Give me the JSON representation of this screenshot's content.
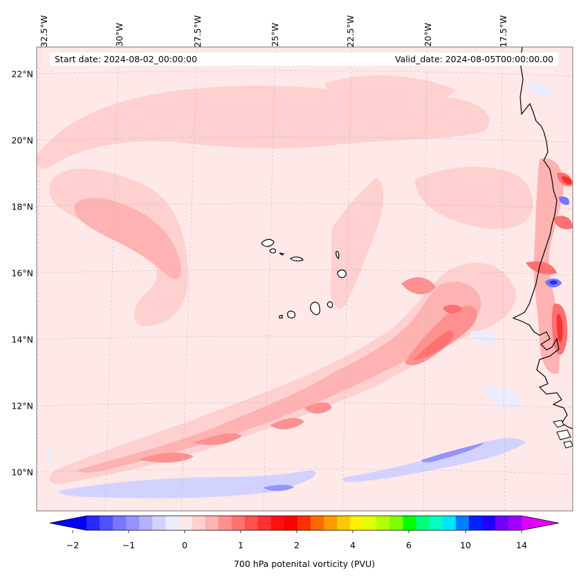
{
  "map": {
    "start_date": "Start date: 2024-08-02_00:00:00",
    "valid_date": "Valid_date: 2024-08-05T00:00:00.00",
    "lon_labels": [
      "32.5°W",
      "30°W",
      "27.5°W",
      "25°W",
      "22.5°W",
      "20°W",
      "17.5°W"
    ],
    "lat_labels": [
      "22°N",
      "20°N",
      "18°N",
      "16°N",
      "14°N",
      "12°N",
      "10°N"
    ],
    "extent": {
      "lon_min": -33.0,
      "lon_max": -15.8,
      "lat_min": 8.9,
      "lat_max": 22.8
    }
  },
  "colorbar": {
    "title": "700 hPa potenital vorticity (PVU)",
    "tick_labels": [
      "−2",
      "−1",
      "0",
      "1",
      "2",
      "4",
      "6",
      "10",
      "14"
    ],
    "colors": [
      "#0000ff",
      "#2a2aff",
      "#5050ff",
      "#7676ff",
      "#9494ff",
      "#b2b2ff",
      "#d2d2ff",
      "#ececff",
      "#ffe8e8",
      "#ffd0d0",
      "#ffb2b2",
      "#ff9090",
      "#ff7070",
      "#ff5050",
      "#ff3030",
      "#ff1010",
      "#ff0000",
      "#ff3000",
      "#ff6a00",
      "#ff9a00",
      "#ffc800",
      "#fff000",
      "#e0ff00",
      "#b4ff00",
      "#7cff00",
      "#00ff00",
      "#00ff7a",
      "#00ffc0",
      "#00e4ff",
      "#0080ff",
      "#0022ff",
      "#2000ff",
      "#7000ff",
      "#a000ff",
      "#e000ff"
    ]
  },
  "colors": {
    "background": "#ffe8e8",
    "light_pink": "#ffd0d0",
    "pink": "#ffb2b2",
    "red": "#ff9090",
    "strong_red": "#ff5050",
    "light_blue": "#ececff",
    "blue": "#d2d2ff",
    "mid_blue": "#9494ff",
    "deep_blue": "#3030ff",
    "grid": "#bbbbbb",
    "coast": "#000000"
  }
}
